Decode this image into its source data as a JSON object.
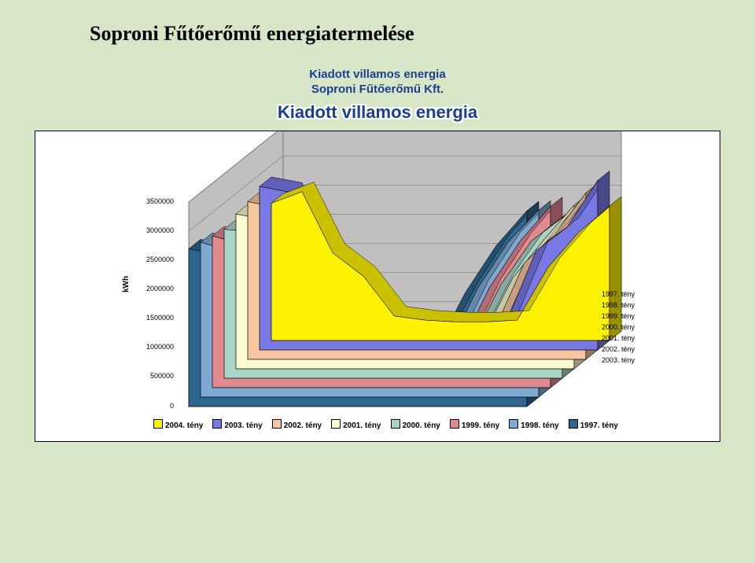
{
  "page_title": "Soproni Fűtőerőmű energiatermelése",
  "subtitle_line1": "Kiadott villamos energia",
  "subtitle_line2": "Soproni Fűtőerőmű Kft.",
  "chart_outlined_title": "Kiadott villamos energia",
  "y_axis_title": "kWh",
  "type": "3d-area",
  "background_color": "#d6e6c6",
  "frame_background": "#ffffff",
  "y_ticks": [
    0,
    500000,
    1000000,
    1500000,
    2000000,
    2500000,
    3000000,
    3500000
  ],
  "ylim": [
    0,
    3500000
  ],
  "wall_color": "#c0c0c0",
  "wall_line_color": "#7b7b7b",
  "series": [
    {
      "name": "2004. tény",
      "color": "#fff200",
      "values": [
        2350000,
        2550000,
        1500000,
        1100000,
        420000,
        350000,
        320000,
        320000,
        350000,
        1250000,
        1850000,
        2300000
      ]
    },
    {
      "name": "2003. tény",
      "color": "#7979e6",
      "values": [
        2800000,
        2700000,
        1650000,
        1050000,
        470000,
        420000,
        380000,
        380000,
        430000,
        1700000,
        2100000,
        2900000
      ]
    },
    {
      "name": "2002. tény",
      "color": "#f6c69f",
      "values": [
        2700000,
        2600000,
        1750000,
        1150000,
        500000,
        430000,
        410000,
        400000,
        480000,
        1650000,
        2150000,
        2850000
      ]
    },
    {
      "name": "2001. tény",
      "color": "#fcfbcf",
      "values": [
        2650000,
        2550000,
        1700000,
        1200000,
        540000,
        460000,
        430000,
        420000,
        520000,
        1550000,
        2200000,
        2800000
      ]
    },
    {
      "name": "2000. tény",
      "color": "#a9d4c8",
      "values": [
        2550000,
        2500000,
        1650000,
        1300000,
        590000,
        480000,
        450000,
        440000,
        570000,
        1600000,
        2350000,
        2750000
      ]
    },
    {
      "name": "1999. tény",
      "color": "#e0898f",
      "values": [
        2600000,
        2450000,
        1700000,
        1350000,
        650000,
        520000,
        490000,
        470000,
        620000,
        1700000,
        2500000,
        3100000
      ]
    },
    {
      "name": "1998. tény",
      "color": "#7faad3",
      "values": [
        2650000,
        2500000,
        1900000,
        1500000,
        800000,
        680000,
        650000,
        630000,
        770000,
        1850000,
        2650000,
        3200000
      ]
    },
    {
      "name": "1997. tény",
      "color": "#2d668e",
      "values": [
        2700000,
        2600000,
        1950000,
        1700000,
        1000000,
        850000,
        820000,
        790000,
        940000,
        1950000,
        2750000,
        3350000
      ]
    }
  ],
  "depth_labels": [
    "1997. tény",
    "1998. tény",
    "1999. tény",
    "2000. tény",
    "2001. tény",
    "2002. tény",
    "2003. tény"
  ]
}
